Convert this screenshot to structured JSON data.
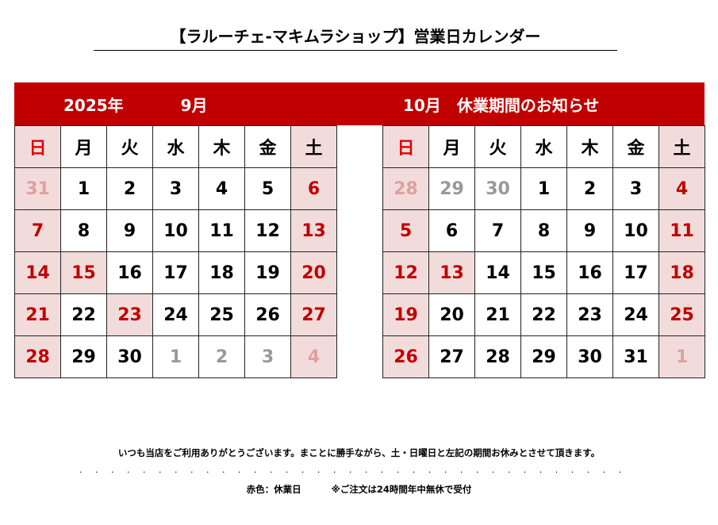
{
  "title": "【ラルーチェ-マキムラショップ】営業日カレンダー",
  "colors": {
    "banner": "#c00000",
    "holiday_bg": "#f2dcdb",
    "holiday_text": "#c00000"
  },
  "weekdays": [
    "日",
    "月",
    "火",
    "水",
    "木",
    "金",
    "土"
  ],
  "calendars": [
    {
      "header_year": "2025年",
      "header_month": "9月",
      "weeks": [
        [
          [
            "31",
            "oh"
          ],
          [
            "1",
            "w"
          ],
          [
            "2",
            "w"
          ],
          [
            "3",
            "w"
          ],
          [
            "4",
            "w"
          ],
          [
            "5",
            "w"
          ],
          [
            "6",
            "h"
          ]
        ],
        [
          [
            "7",
            "h"
          ],
          [
            "8",
            "w"
          ],
          [
            "9",
            "w"
          ],
          [
            "10",
            "w"
          ],
          [
            "11",
            "w"
          ],
          [
            "12",
            "w"
          ],
          [
            "13",
            "h"
          ]
        ],
        [
          [
            "14",
            "h"
          ],
          [
            "15",
            "h"
          ],
          [
            "16",
            "w"
          ],
          [
            "17",
            "w"
          ],
          [
            "18",
            "w"
          ],
          [
            "19",
            "w"
          ],
          [
            "20",
            "h"
          ]
        ],
        [
          [
            "21",
            "h"
          ],
          [
            "22",
            "w"
          ],
          [
            "23",
            "h"
          ],
          [
            "24",
            "w"
          ],
          [
            "25",
            "w"
          ],
          [
            "26",
            "w"
          ],
          [
            "27",
            "h"
          ]
        ],
        [
          [
            "28",
            "h"
          ],
          [
            "29",
            "w"
          ],
          [
            "30",
            "w"
          ],
          [
            "1",
            "o"
          ],
          [
            "2",
            "o"
          ],
          [
            "3",
            "o"
          ],
          [
            "4",
            "oh"
          ]
        ]
      ]
    },
    {
      "header_year": "",
      "header_month": "10月　休業期間のお知らせ",
      "weeks": [
        [
          [
            "28",
            "oh"
          ],
          [
            "29",
            "o"
          ],
          [
            "30",
            "o"
          ],
          [
            "1",
            "w"
          ],
          [
            "2",
            "w"
          ],
          [
            "3",
            "w"
          ],
          [
            "4",
            "h"
          ]
        ],
        [
          [
            "5",
            "h"
          ],
          [
            "6",
            "w"
          ],
          [
            "7",
            "w"
          ],
          [
            "8",
            "w"
          ],
          [
            "9",
            "w"
          ],
          [
            "10",
            "w"
          ],
          [
            "11",
            "h"
          ]
        ],
        [
          [
            "12",
            "h"
          ],
          [
            "13",
            "h"
          ],
          [
            "14",
            "w"
          ],
          [
            "15",
            "w"
          ],
          [
            "16",
            "w"
          ],
          [
            "17",
            "w"
          ],
          [
            "18",
            "h"
          ]
        ],
        [
          [
            "19",
            "h"
          ],
          [
            "20",
            "w"
          ],
          [
            "21",
            "w"
          ],
          [
            "22",
            "w"
          ],
          [
            "23",
            "w"
          ],
          [
            "24",
            "w"
          ],
          [
            "25",
            "h"
          ]
        ],
        [
          [
            "26",
            "h"
          ],
          [
            "27",
            "w"
          ],
          [
            "28",
            "w"
          ],
          [
            "29",
            "w"
          ],
          [
            "30",
            "w"
          ],
          [
            "31",
            "w"
          ],
          [
            "1",
            "oh"
          ]
        ]
      ]
    }
  ],
  "footer": {
    "message": "いつも当店をご利用ありがとうございます。まことに勝手ながら、土・日曜日と左記の期間お休みとさせて頂きます。",
    "legend": "赤色：休業日",
    "order_note": "※ご注文は24時間年中無休で受付"
  }
}
